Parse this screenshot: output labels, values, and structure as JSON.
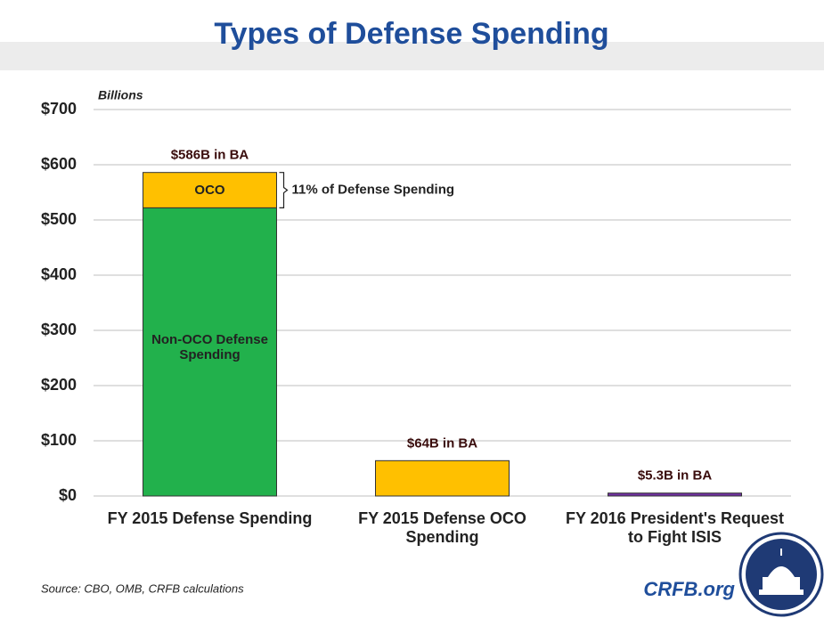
{
  "chart_data": {
    "type": "stacked_bar",
    "title": "Types of Defense Spending",
    "y_label": "Billions",
    "categories": [
      "FY 2015 Defense Spending",
      "FY 2015 Defense OCO Spending",
      "FY 2016 President's Request to Fight ISIS"
    ],
    "series": [
      {
        "name": "Non-OCO Defense Spending",
        "color": "#22b14c",
        "values": [
          522,
          null,
          null
        ]
      },
      {
        "name": "OCO",
        "color": "#ffc000",
        "values": [
          64,
          64,
          null
        ]
      },
      {
        "color": "#7030a0",
        "values": [
          null,
          null,
          5.3
        ]
      }
    ],
    "totals": [
      586,
      64,
      5.3
    ],
    "total_labels": [
      "$586B in BA",
      "$64B in BA",
      "$5.3B in BA"
    ],
    "annotation": "11% of Defense Spending",
    "ylim": [
      0,
      700
    ],
    "yticks": [
      {
        "value": 0,
        "label": "$0"
      },
      {
        "value": 100,
        "label": "$100"
      },
      {
        "value": 200,
        "label": "$200"
      },
      {
        "value": 300,
        "label": "$300"
      },
      {
        "value": 400,
        "label": "$400"
      },
      {
        "value": 500,
        "label": "$500"
      },
      {
        "value": 600,
        "label": "$600"
      },
      {
        "value": 700,
        "label": "$700"
      }
    ],
    "grid": true,
    "source": "Source: CBO, OMB, CRFB calculations",
    "brand": "CRFB.org"
  }
}
